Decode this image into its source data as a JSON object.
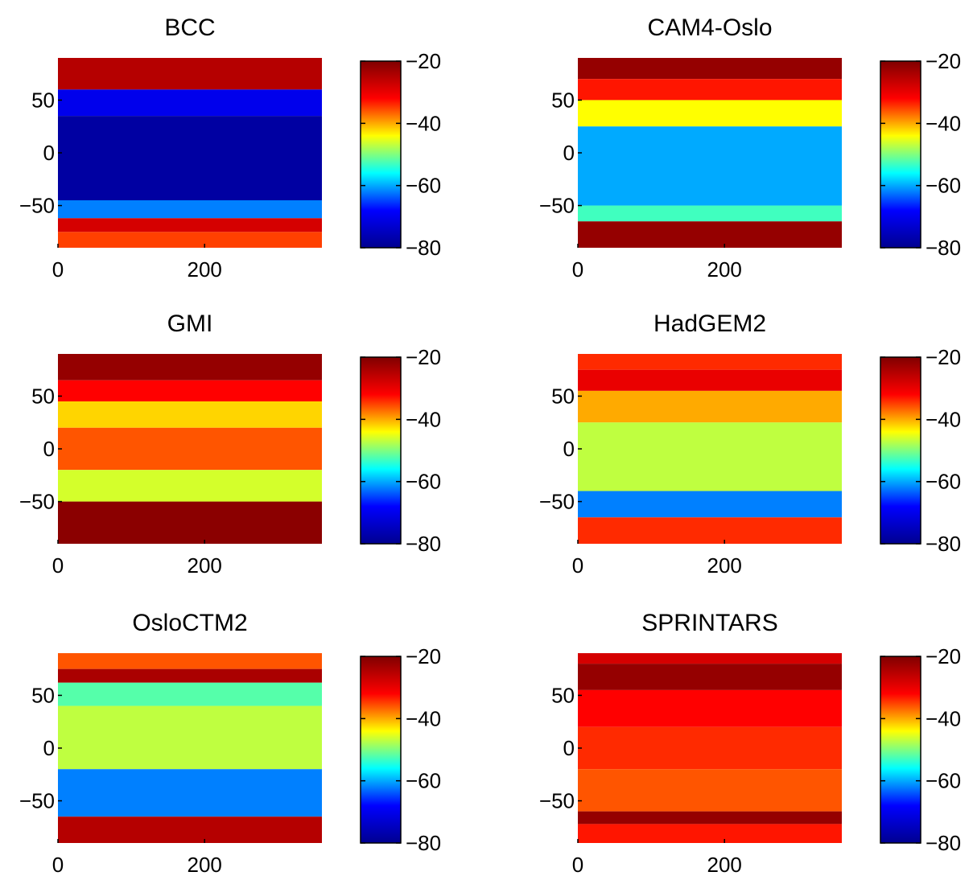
{
  "colormap": {
    "name": "jet",
    "stops": [
      "#00008f",
      "#0000ff",
      "#00ffff",
      "#ffff00",
      "#ff0000",
      "#800000"
    ]
  },
  "chart_data": [
    {
      "type": "heatmap",
      "title": "BCC",
      "xlabel": "",
      "ylabel": "",
      "xlim": [
        0,
        360
      ],
      "ylim": [
        -90,
        90
      ],
      "xticks": [
        "0",
        "200"
      ],
      "yticks": [
        "50",
        "0",
        "-50"
      ],
      "colorbar": {
        "range": [
          -80,
          -20
        ],
        "ticks": [
          "-20",
          "-40",
          "-60",
          "-80"
        ]
      },
      "zones": [
        {
          "lat": [
            60,
            90
          ],
          "value": -25
        },
        {
          "lat": [
            35,
            60
          ],
          "value": -70
        },
        {
          "lat": [
            -45,
            35
          ],
          "value": -78
        },
        {
          "lat": [
            -62,
            -45
          ],
          "value": -62
        },
        {
          "lat": [
            -75,
            -62
          ],
          "value": -28
        },
        {
          "lat": [
            -90,
            -75
          ],
          "value": -35
        }
      ]
    },
    {
      "type": "heatmap",
      "title": "CAM4-Oslo",
      "xlabel": "",
      "ylabel": "",
      "xlim": [
        0,
        360
      ],
      "ylim": [
        -90,
        90
      ],
      "xticks": [
        "0",
        "200"
      ],
      "yticks": [
        "50",
        "0",
        "-50"
      ],
      "colorbar": {
        "range": [
          -80,
          -20
        ],
        "ticks": [
          "-20",
          "-40",
          "-60",
          "-80"
        ]
      },
      "zones": [
        {
          "lat": [
            70,
            90
          ],
          "value": -22
        },
        {
          "lat": [
            50,
            70
          ],
          "value": -33
        },
        {
          "lat": [
            25,
            50
          ],
          "value": -44
        },
        {
          "lat": [
            -50,
            25
          ],
          "value": -60
        },
        {
          "lat": [
            -65,
            -50
          ],
          "value": -53
        },
        {
          "lat": [
            -90,
            -65
          ],
          "value": -22
        }
      ]
    },
    {
      "type": "heatmap",
      "title": "GMI",
      "xlabel": "",
      "ylabel": "",
      "xlim": [
        0,
        360
      ],
      "ylim": [
        -90,
        90
      ],
      "xticks": [
        "0",
        "200"
      ],
      "yticks": [
        "50",
        "0",
        "-50"
      ],
      "colorbar": {
        "range": [
          -80,
          -20
        ],
        "ticks": [
          "-20",
          "-40",
          "-60",
          "-80"
        ]
      },
      "zones": [
        {
          "lat": [
            65,
            90
          ],
          "value": -22
        },
        {
          "lat": [
            45,
            65
          ],
          "value": -32
        },
        {
          "lat": [
            20,
            45
          ],
          "value": -42
        },
        {
          "lat": [
            -20,
            20
          ],
          "value": -36
        },
        {
          "lat": [
            -50,
            -20
          ],
          "value": -46
        },
        {
          "lat": [
            -90,
            -50
          ],
          "value": -21
        }
      ]
    },
    {
      "type": "heatmap",
      "title": "HadGEM2",
      "xlabel": "",
      "ylabel": "",
      "xlim": [
        0,
        360
      ],
      "ylim": [
        -90,
        90
      ],
      "xticks": [
        "0",
        "200"
      ],
      "yticks": [
        "50",
        "0",
        "-50"
      ],
      "colorbar": {
        "range": [
          -80,
          -20
        ],
        "ticks": [
          "-20",
          "-40",
          "-60",
          "-80"
        ]
      },
      "zones": [
        {
          "lat": [
            75,
            90
          ],
          "value": -34
        },
        {
          "lat": [
            55,
            75
          ],
          "value": -30
        },
        {
          "lat": [
            25,
            55
          ],
          "value": -40
        },
        {
          "lat": [
            -40,
            25
          ],
          "value": -47
        },
        {
          "lat": [
            -65,
            -40
          ],
          "value": -62
        },
        {
          "lat": [
            -90,
            -65
          ],
          "value": -34
        }
      ]
    },
    {
      "type": "heatmap",
      "title": "OsloCTM2",
      "xlabel": "",
      "ylabel": "",
      "xlim": [
        0,
        360
      ],
      "ylim": [
        -90,
        90
      ],
      "xticks": [
        "0",
        "200"
      ],
      "yticks": [
        "50",
        "0",
        "-50"
      ],
      "colorbar": {
        "range": [
          -80,
          -20
        ],
        "ticks": [
          "-20",
          "-40",
          "-60",
          "-80"
        ]
      },
      "zones": [
        {
          "lat": [
            75,
            90
          ],
          "value": -36
        },
        {
          "lat": [
            62,
            75
          ],
          "value": -24
        },
        {
          "lat": [
            40,
            62
          ],
          "value": -52
        },
        {
          "lat": [
            -20,
            40
          ],
          "value": -47
        },
        {
          "lat": [
            -65,
            -20
          ],
          "value": -62
        },
        {
          "lat": [
            -90,
            -65
          ],
          "value": -25
        }
      ]
    },
    {
      "type": "heatmap",
      "title": "SPRINTARS",
      "xlabel": "",
      "ylabel": "",
      "xlim": [
        0,
        360
      ],
      "ylim": [
        -90,
        90
      ],
      "xticks": [
        "0",
        "200"
      ],
      "yticks": [
        "50",
        "0",
        "-50"
      ],
      "colorbar": {
        "range": [
          -80,
          -20
        ],
        "ticks": [
          "-20",
          "-40",
          "-60",
          "-80"
        ]
      },
      "zones": [
        {
          "lat": [
            80,
            90
          ],
          "value": -28
        },
        {
          "lat": [
            55,
            80
          ],
          "value": -22
        },
        {
          "lat": [
            20,
            55
          ],
          "value": -32
        },
        {
          "lat": [
            -20,
            20
          ],
          "value": -34
        },
        {
          "lat": [
            -60,
            -20
          ],
          "value": -36
        },
        {
          "lat": [
            -72,
            -60
          ],
          "value": -22
        },
        {
          "lat": [
            -90,
            -72
          ],
          "value": -33
        }
      ]
    }
  ]
}
